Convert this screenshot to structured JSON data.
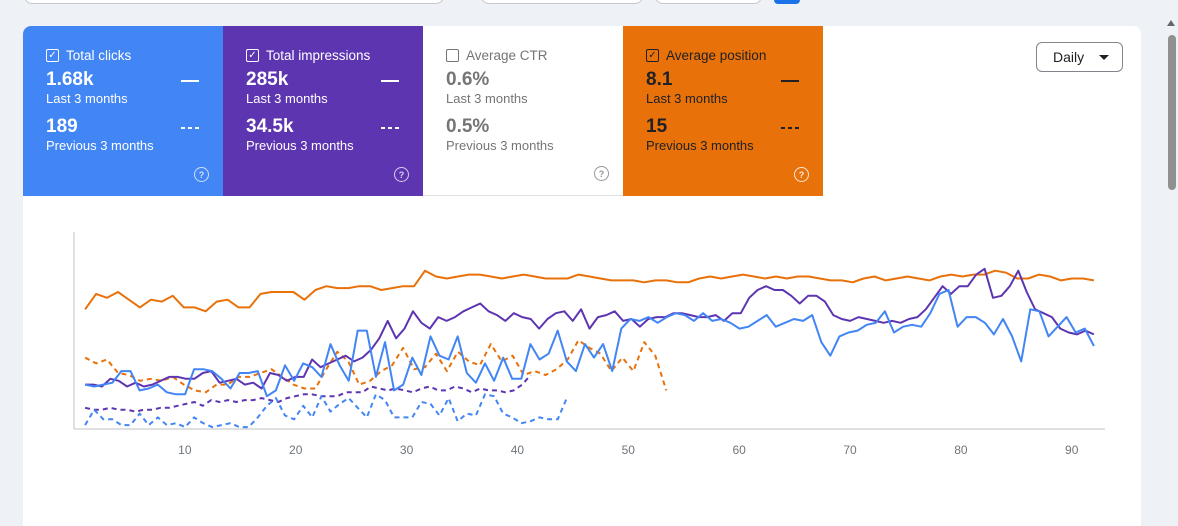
{
  "tiles": [
    {
      "id": "clicks",
      "label": "Total clicks",
      "checked": true,
      "value": "1.68k",
      "period": "Last 3 months",
      "prev_value": "189",
      "prev_period": "Previous 3 months"
    },
    {
      "id": "impressions",
      "label": "Total impressions",
      "checked": true,
      "value": "285k",
      "period": "Last 3 months",
      "prev_value": "34.5k",
      "prev_period": "Previous 3 months"
    },
    {
      "id": "ctr",
      "label": "Average CTR",
      "checked": false,
      "value": "0.6%",
      "period": "Last 3 months",
      "prev_value": "0.5%",
      "prev_period": "Previous 3 months"
    },
    {
      "id": "position",
      "label": "Average position",
      "checked": true,
      "value": "8.1",
      "period": "Last 3 months",
      "prev_value": "15",
      "prev_period": "Previous 3 months"
    }
  ],
  "period_select": {
    "value": "Daily"
  },
  "colors": {
    "clicks": "#4285f4",
    "impressions": "#5e35b1",
    "position": "#e8710a",
    "ctr_text": "#757575"
  },
  "chart_data": {
    "type": "line",
    "xlim": [
      0,
      93
    ],
    "ylim": [
      0,
      100
    ],
    "x_ticks": [
      10,
      20,
      30,
      40,
      50,
      60,
      70,
      80,
      90
    ],
    "grid": false,
    "series": [
      {
        "key": "position",
        "style": "solid",
        "x_start": 1,
        "values": [
          62,
          70,
          68,
          71,
          67,
          63,
          67,
          66,
          69,
          63,
          63,
          61,
          66,
          67,
          63,
          63,
          70,
          71,
          71,
          71,
          67,
          72,
          74,
          73,
          73,
          74,
          74,
          72,
          73,
          74,
          74,
          82,
          79,
          78,
          79,
          80,
          80,
          79,
          78,
          79,
          80,
          79,
          78,
          78,
          78,
          80,
          79,
          78,
          77,
          77,
          77,
          76,
          77,
          77,
          76,
          76,
          78,
          79,
          78,
          79,
          80,
          79,
          78,
          79,
          78,
          79,
          79,
          78,
          77,
          77,
          76,
          78,
          79,
          77,
          78,
          79,
          78,
          77,
          79,
          80,
          79,
          80,
          80,
          82,
          81,
          78,
          78,
          80,
          79,
          77,
          78,
          78,
          77
        ]
      },
      {
        "key": "position",
        "style": "dashed",
        "x_start": 1,
        "values": [
          37,
          34,
          36,
          29,
          28,
          25,
          26,
          25,
          27,
          23,
          20,
          19,
          23,
          23,
          27,
          27,
          29,
          31,
          27,
          23,
          21,
          21,
          31,
          40,
          35,
          23,
          25,
          30,
          33,
          42,
          31,
          32,
          39,
          30,
          40,
          35,
          33,
          44,
          35,
          38,
          28,
          30,
          28,
          31,
          36,
          46,
          42,
          39,
          30,
          37,
          30,
          45,
          38,
          20
        ]
      },
      {
        "key": "impressions",
        "style": "solid",
        "x_start": 1,
        "values": [
          23,
          23,
          22,
          26,
          25,
          22,
          24,
          22,
          23,
          25,
          27,
          27,
          26,
          26,
          29,
          30,
          24,
          25,
          26,
          23,
          24,
          21,
          29,
          28,
          25,
          27,
          27,
          36,
          32,
          34,
          36,
          38,
          35,
          37,
          41,
          47,
          56,
          47,
          52,
          61,
          55,
          52,
          58,
          56,
          58,
          61,
          63,
          65,
          61,
          59,
          56,
          60,
          58,
          57,
          52,
          57,
          60,
          61,
          56,
          62,
          52,
          58,
          59,
          61,
          56,
          57,
          53,
          57,
          58,
          58,
          60,
          60,
          59,
          58,
          58,
          59,
          56,
          60,
          60,
          68,
          72,
          74,
          72,
          72,
          69,
          65,
          69,
          69,
          66,
          59,
          57,
          56,
          58,
          57,
          56,
          55,
          56,
          55,
          57,
          58,
          62,
          68,
          74,
          70,
          74,
          74,
          80,
          83,
          68,
          69,
          74,
          82,
          71,
          62,
          60,
          58,
          52,
          50,
          49,
          51,
          49
        ]
      },
      {
        "key": "impressions",
        "style": "dashed",
        "x_start": 1,
        "values": [
          11,
          10,
          10,
          11,
          10,
          10,
          9,
          10,
          10,
          11,
          11,
          12,
          13,
          14,
          12,
          15,
          14,
          15,
          14,
          15,
          15,
          16,
          15,
          14,
          16,
          17,
          18,
          18,
          17,
          17,
          17,
          19,
          19,
          19,
          22,
          21,
          20,
          21,
          20,
          19,
          21,
          22,
          20,
          20,
          22,
          21,
          19,
          21,
          20,
          20,
          19,
          20,
          23,
          28
        ]
      },
      {
        "key": "clicks",
        "style": "solid",
        "x_start": 1,
        "values": [
          23,
          22,
          23,
          24,
          30,
          30,
          20,
          21,
          23,
          19,
          18,
          18,
          31,
          31,
          30,
          26,
          21,
          29,
          29,
          30,
          17,
          20,
          33,
          25,
          34,
          32,
          27,
          44,
          33,
          25,
          51,
          51,
          27,
          45,
          20,
          23,
          37,
          28,
          48,
          38,
          36,
          48,
          29,
          24,
          34,
          25,
          37,
          26,
          26,
          44,
          36,
          39,
          51,
          35,
          30,
          44,
          37,
          44,
          30,
          52,
          57,
          56,
          58,
          55,
          58,
          60,
          59,
          56,
          60,
          56,
          57,
          55,
          52,
          53,
          56,
          59,
          53,
          55,
          57,
          56,
          59,
          45,
          38,
          48,
          50,
          51,
          54,
          55,
          61,
          50,
          53,
          54,
          53,
          60,
          70,
          72,
          53,
          58,
          58,
          55,
          49,
          57,
          48,
          35,
          62,
          61,
          48,
          53,
          58,
          50,
          52,
          43
        ]
      },
      {
        "key": "clicks",
        "style": "dashed",
        "x_start": 1,
        "values": [
          2,
          10,
          5,
          5,
          2,
          2,
          8,
          2,
          6,
          2,
          3,
          1,
          6,
          3,
          1,
          2,
          3,
          1,
          1,
          6,
          12,
          16,
          7,
          5,
          12,
          6,
          17,
          9,
          13,
          16,
          11,
          6,
          18,
          15,
          6,
          6,
          6,
          14,
          13,
          7,
          16,
          4,
          8,
          7,
          18,
          17,
          8,
          6,
          3,
          4,
          6,
          5,
          5,
          16
        ]
      }
    ]
  }
}
